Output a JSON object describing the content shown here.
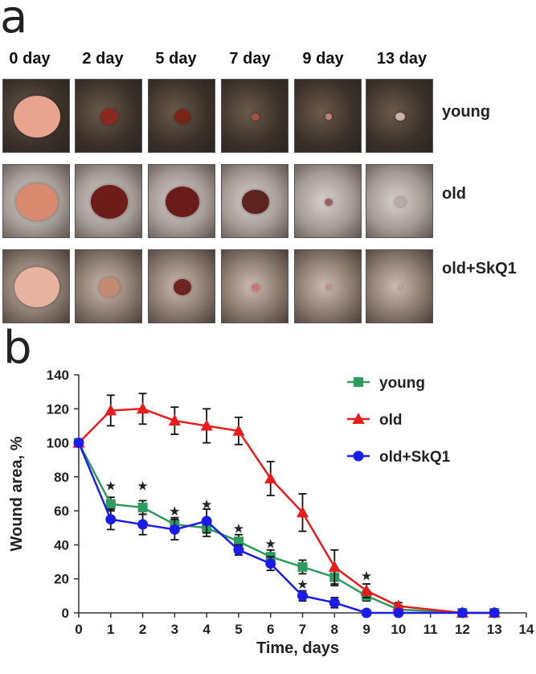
{
  "panel_a": {
    "letter": "a",
    "days": [
      "0 day",
      "2 day",
      "5 day",
      "7 day",
      "9 day",
      "13 day"
    ],
    "rows": [
      "young",
      "old",
      "old+SkQ1"
    ]
  },
  "panel_b": {
    "letter": "b"
  },
  "chart_data": {
    "type": "line",
    "title": "",
    "xlabel": "Time, days",
    "ylabel": "Wound area, %",
    "xlim": [
      0,
      14
    ],
    "ylim": [
      0,
      140
    ],
    "xticks": [
      0,
      1,
      2,
      3,
      4,
      5,
      6,
      7,
      8,
      9,
      10,
      11,
      12,
      13,
      14
    ],
    "yticks": [
      0,
      20,
      40,
      60,
      80,
      100,
      120,
      140
    ],
    "legend_position": "top-right",
    "series": [
      {
        "name": "young",
        "color": "#2e9a5e",
        "marker": "square",
        "x": [
          0,
          1,
          2,
          3,
          4,
          5,
          6,
          7,
          8,
          9,
          10,
          12,
          13
        ],
        "y": [
          100,
          64,
          62,
          52,
          50,
          42,
          33,
          27,
          21,
          10,
          2,
          0,
          0
        ],
        "err": [
          0,
          4,
          4,
          4,
          5,
          4,
          4,
          4,
          5,
          3,
          1,
          0,
          0
        ]
      },
      {
        "name": "old",
        "color": "#e81c1c",
        "marker": "triangle",
        "x": [
          0,
          1,
          2,
          3,
          4,
          5,
          6,
          7,
          8,
          9,
          10,
          12,
          13
        ],
        "y": [
          100,
          119,
          120,
          113,
          110,
          107,
          79,
          59,
          27,
          13,
          4,
          0,
          0
        ],
        "err": [
          0,
          9,
          9,
          8,
          10,
          8,
          10,
          11,
          10,
          4,
          2,
          0,
          0
        ]
      },
      {
        "name": "old+SkQ1",
        "color": "#1c1ce8",
        "marker": "circle",
        "x": [
          0,
          1,
          2,
          3,
          4,
          5,
          6,
          7,
          8,
          9,
          10,
          12,
          13
        ],
        "y": [
          100,
          55,
          52,
          49,
          54,
          37,
          29,
          10,
          6,
          0,
          0,
          0,
          0
        ],
        "err": [
          0,
          6,
          6,
          6,
          7,
          3,
          4,
          3,
          3,
          0,
          0,
          0,
          0
        ]
      }
    ],
    "significance_markers": [
      {
        "x": 1,
        "y": 75,
        "symbol": "★"
      },
      {
        "x": 2,
        "y": 75,
        "symbol": "★"
      },
      {
        "x": 3,
        "y": 60,
        "symbol": "★"
      },
      {
        "x": 4,
        "y": 64,
        "symbol": "★"
      },
      {
        "x": 5,
        "y": 50,
        "symbol": "★"
      },
      {
        "x": 6,
        "y": 41,
        "symbol": "★"
      },
      {
        "x": 7,
        "y": 17,
        "symbol": "★"
      },
      {
        "x": 9,
        "y": 22,
        "symbol": "★"
      }
    ]
  }
}
